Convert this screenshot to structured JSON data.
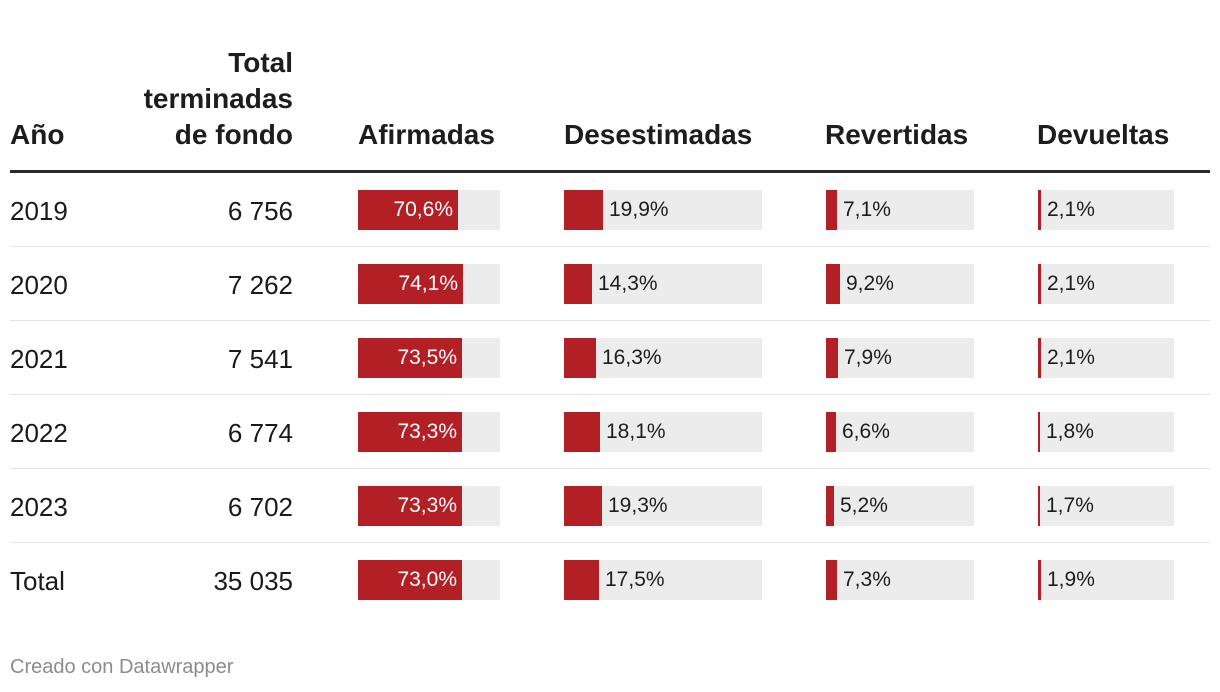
{
  "chart_data": {
    "type": "table",
    "columns": {
      "year": "Año",
      "total": "Total\nterminadas\nde fondo",
      "series": [
        "Afirmadas",
        "Desestimadas",
        "Revertidas",
        "Devueltas"
      ]
    },
    "rows": [
      {
        "year": "2019",
        "total": "6 756",
        "values": [
          70.6,
          19.9,
          7.1,
          2.1
        ],
        "labels": [
          "70,6%",
          "19,9%",
          "7,1%",
          "2,1%"
        ]
      },
      {
        "year": "2020",
        "total": "7 262",
        "values": [
          74.1,
          14.3,
          9.2,
          2.1
        ],
        "labels": [
          "74,1%",
          "14,3%",
          "9,2%",
          "2,1%"
        ]
      },
      {
        "year": "2021",
        "total": "7 541",
        "values": [
          73.5,
          16.3,
          7.9,
          2.1
        ],
        "labels": [
          "73,5%",
          "16,3%",
          "7,9%",
          "2,1%"
        ]
      },
      {
        "year": "2022",
        "total": "6 774",
        "values": [
          73.3,
          18.1,
          6.6,
          1.8
        ],
        "labels": [
          "73,3%",
          "18,1%",
          "6,6%",
          "1,8%"
        ]
      },
      {
        "year": "2023",
        "total": "6 702",
        "values": [
          73.3,
          19.3,
          5.2,
          1.7
        ],
        "labels": [
          "73,3%",
          "19,3%",
          "5,2%",
          "1,7%"
        ]
      },
      {
        "year": "Total",
        "total": "35 035",
        "values": [
          73.0,
          17.5,
          7.3,
          1.9
        ],
        "labels": [
          "73,0%",
          "17,5%",
          "7,3%",
          "1,9%"
        ]
      }
    ],
    "bar_color": "#b21f24",
    "bar_background": "#ececec",
    "value_max": 100
  },
  "footer": "Creado con Datawrapper"
}
